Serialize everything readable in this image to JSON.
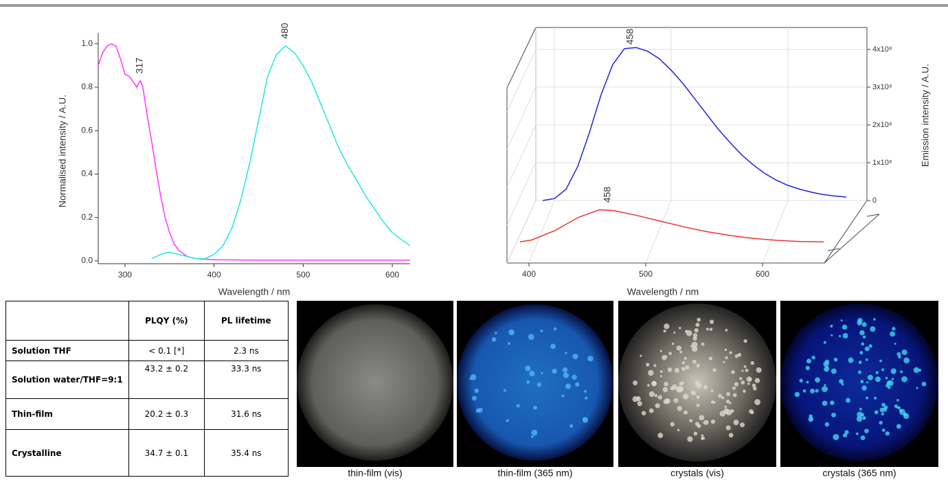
{
  "chart_data": [
    {
      "type": "line",
      "x_label": "Wavelength / nm",
      "y_label": "Normalised intensity / A.U.",
      "xlim": [
        270,
        620
      ],
      "ylim": [
        -0.013,
        1.05
      ],
      "xticks": [
        300,
        400,
        500,
        600
      ],
      "yticks": [
        {
          "value": 0,
          "label": "0.0"
        },
        0.2,
        0.4,
        0.6,
        0.8,
        {
          "value": 1,
          "label": "1.0"
        }
      ],
      "series": [
        {
          "color": "#ff33ff",
          "x": [
            270,
            275,
            280,
            285,
            290,
            295,
            300,
            305,
            310,
            313,
            317,
            320,
            325,
            330,
            335,
            340,
            345,
            350,
            355,
            360,
            370,
            380,
            400,
            450,
            500,
            550,
            600,
            620
          ],
          "values": [
            0.9,
            0.96,
            0.99,
            1.0,
            0.99,
            0.93,
            0.86,
            0.85,
            0.82,
            0.8,
            0.83,
            0.8,
            0.67,
            0.55,
            0.42,
            0.3,
            0.2,
            0.13,
            0.08,
            0.05,
            0.02,
            0.01,
            0.005,
            0.003,
            0.003,
            0.003,
            0.003,
            0.003
          ],
          "annotations": [
            {
              "text": "317",
              "x": 317
            }
          ]
        },
        {
          "color": "#22e5e5",
          "x": [
            330,
            340,
            350,
            360,
            370,
            380,
            390,
            400,
            410,
            420,
            430,
            440,
            450,
            460,
            470,
            480,
            490,
            500,
            510,
            520,
            530,
            540,
            550,
            560,
            570,
            580,
            590,
            600,
            610,
            620
          ],
          "values": [
            0.01,
            0.03,
            0.04,
            0.03,
            0.02,
            0.01,
            0.01,
            0.03,
            0.07,
            0.15,
            0.28,
            0.45,
            0.65,
            0.85,
            0.95,
            0.99,
            0.96,
            0.9,
            0.82,
            0.72,
            0.62,
            0.52,
            0.44,
            0.37,
            0.3,
            0.24,
            0.18,
            0.13,
            0.1,
            0.07
          ],
          "annotations": [
            {
              "text": "480",
              "x": 480
            }
          ]
        }
      ]
    },
    {
      "type": "waterfall",
      "x_label": "Wavelength / nm",
      "y_label": "Emission intensity / A.U.",
      "xlim": [
        390,
        650
      ],
      "ylim": [
        0,
        458000000.0
      ],
      "xticks": [
        400,
        500,
        600
      ],
      "yticks": [
        0,
        {
          "value": 100000000.0,
          "label": "1x10⁸"
        },
        {
          "value": 200000000.0,
          "label": "2x10⁸"
        },
        {
          "value": 300000000.0,
          "label": "3x10⁸"
        },
        {
          "value": 400000000.0,
          "label": "4x10⁸"
        }
      ],
      "series": [
        {
          "color": "#2222dd",
          "x": [
            390,
            400,
            410,
            420,
            430,
            440,
            450,
            460,
            470,
            480,
            490,
            500,
            510,
            520,
            530,
            540,
            550,
            560,
            570,
            580,
            590,
            600,
            610,
            620,
            630,
            640,
            650
          ],
          "values": [
            0,
            5000000.0,
            30000000.0,
            90000000.0,
            180000000.0,
            280000000.0,
            360000000.0,
            402000000.0,
            405000000.0,
            395000000.0,
            375000000.0,
            345000000.0,
            310000000.0,
            270000000.0,
            230000000.0,
            190000000.0,
            155000000.0,
            122000000.0,
            95000000.0,
            72000000.0,
            54000000.0,
            40000000.0,
            30000000.0,
            22000000.0,
            16000000.0,
            12000000.0,
            9000000.0
          ],
          "annotations": [
            {
              "text": "458",
              "x": 458
            }
          ]
        },
        {
          "color": "#ee3333",
          "x": [
            390,
            400,
            420,
            440,
            458,
            470,
            490,
            510,
            530,
            550,
            570,
            590,
            610,
            630,
            650
          ],
          "values": [
            5000000.0,
            10000000.0,
            35000000.0,
            70000000.0,
            90000000.0,
            88000000.0,
            75000000.0,
            60000000.0,
            45000000.0,
            32000000.0,
            22000000.0,
            14000000.0,
            9000000.0,
            6000000.0,
            5000000.0
          ],
          "annotations": [
            {
              "text": "458",
              "x": 458
            }
          ]
        }
      ]
    }
  ],
  "table": {
    "columns": [
      "PLQY (%)",
      "PL lifetime"
    ],
    "rows": [
      [
        "Solution THF",
        "< 0.1 [*]",
        "2.3 ns"
      ],
      [
        "Solution water/THF=9:1",
        "43.2 ± 0.2",
        "33.3 ns"
      ],
      [
        "Thin-film",
        "20.2 ± 0.3",
        "31.6 ns"
      ],
      [
        "Crystalline",
        "34.7 ± 0.1",
        "35.4 ns"
      ]
    ]
  },
  "photos": [
    {
      "caption": "thin-film (vis)"
    },
    {
      "caption": "thin-film (365 nm)"
    },
    {
      "caption": "crystals (vis)"
    },
    {
      "caption": "crystals (365 nm)"
    }
  ]
}
